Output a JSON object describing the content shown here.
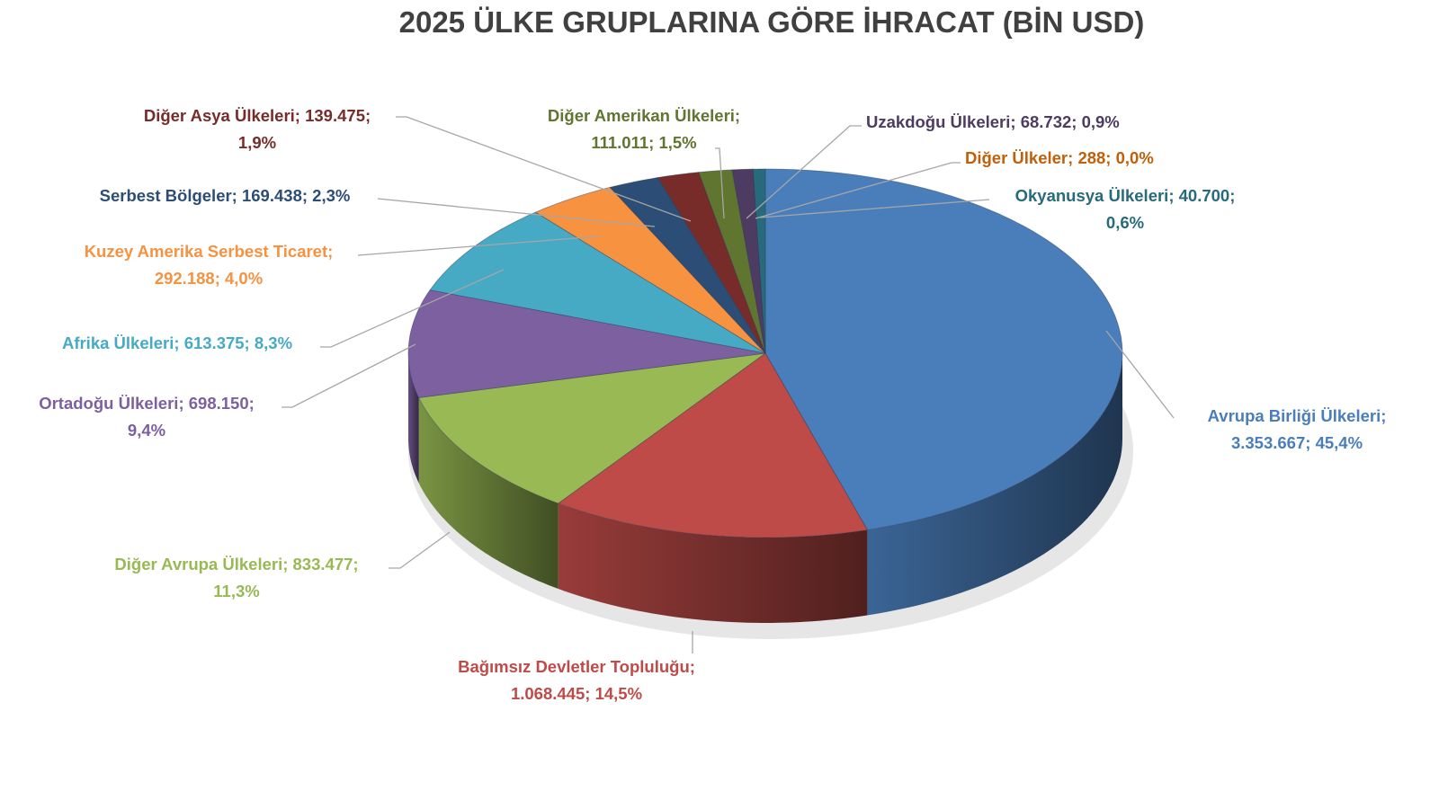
{
  "chart_data": {
    "type": "pie",
    "style": "3d",
    "title": "2025 ÜLKE GRUPLARINA GÖRE İHRACAT (BİN USD)",
    "slices": [
      {
        "name": "Avrupa Birliği Ülkeleri",
        "value": 3353667,
        "value_label": "3.353.667",
        "percent": "45,4%",
        "color": "#4a7ebb"
      },
      {
        "name": "Bağımsız Devletler Topluluğu",
        "value": 1068445,
        "value_label": "1.068.445",
        "percent": "14,5%",
        "color": "#be4b48"
      },
      {
        "name": "Diğer Avrupa Ülkeleri",
        "value": 833477,
        "value_label": "833.477",
        "percent": "11,3%",
        "color": "#98b954"
      },
      {
        "name": "Ortadoğu Ülkeleri",
        "value": 698150,
        "value_label": "698.150",
        "percent": "9,4%",
        "color": "#7d60a0"
      },
      {
        "name": "Afrika Ülkeleri",
        "value": 613375,
        "value_label": "613.375",
        "percent": "8,3%",
        "color": "#46aac5"
      },
      {
        "name": "Kuzey Amerika Serbest Ticaret",
        "value": 292188,
        "value_label": "292.188",
        "percent": "4,0%",
        "color": "#f69240"
      },
      {
        "name": "Serbest Bölgeler",
        "value": 169438,
        "value_label": "169.438",
        "percent": "2,3%",
        "color": "#2c4d75"
      },
      {
        "name": "Diğer Asya Ülkeleri",
        "value": 139475,
        "value_label": "139.475",
        "percent": "1,9%",
        "color": "#772c2a"
      },
      {
        "name": "Diğer Amerikan Ülkeleri",
        "value": 111011,
        "value_label": "111.011",
        "percent": "1,5%",
        "color": "#5f7530"
      },
      {
        "name": "Uzakdoğu Ülkeleri",
        "value": 68732,
        "value_label": "68.732",
        "percent": "0,9%",
        "color": "#4d3b62"
      },
      {
        "name": "Diğer Ülkeler",
        "value": 288,
        "value_label": "288",
        "percent": "0,0%",
        "color": "#b65708"
      },
      {
        "name": "Okyanusya Ülkeleri",
        "value": 40700,
        "value_label": "40.700",
        "percent": "0,6%",
        "color": "#276a7c"
      }
    ],
    "label_colors": [
      "#4a7ebb",
      "#be4b48",
      "#98b954",
      "#7d60a0",
      "#46aac5",
      "#f69240",
      "#2c4d75",
      "#772c2a",
      "#5f7530",
      "#4d3b62",
      "#c0600a",
      "#276a7c"
    ]
  }
}
